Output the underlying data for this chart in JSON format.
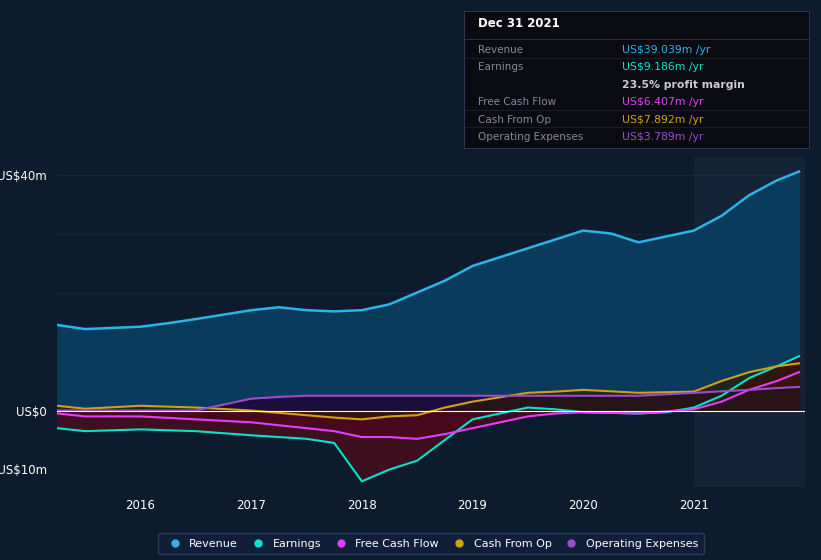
{
  "bg_color": "#0d1b2e",
  "plot_bg_color": "#0d1b2e",
  "highlight_bg": "#142338",
  "grid_color": "#1e3a5a",
  "zero_line_color": "#ffffff",
  "ylabel_top": "US$40m",
  "ylabel_zero": "US$0",
  "ylabel_bottom": "-US$10m",
  "x_labels": [
    "2016",
    "2017",
    "2018",
    "2019",
    "2020",
    "2021"
  ],
  "revenue": {
    "color": "#29b5e8",
    "fill_color": "#0a3a5c",
    "label": "Revenue",
    "data_x": [
      2015.25,
      2015.5,
      2016.0,
      2016.25,
      2016.5,
      2017.0,
      2017.25,
      2017.5,
      2017.75,
      2018.0,
      2018.25,
      2018.5,
      2018.75,
      2019.0,
      2019.5,
      2019.75,
      2020.0,
      2020.25,
      2020.5,
      2020.75,
      2021.0,
      2021.25,
      2021.5,
      2021.75,
      2021.95
    ],
    "data_y": [
      14.5,
      13.8,
      14.2,
      14.8,
      15.5,
      17.0,
      17.5,
      17.0,
      16.8,
      17.0,
      18.0,
      20.0,
      22.0,
      24.5,
      27.5,
      29.0,
      30.5,
      30.0,
      28.5,
      29.5,
      30.5,
      33.0,
      36.5,
      39.0,
      40.5
    ]
  },
  "earnings": {
    "color": "#00e5cc",
    "fill_color": "#3d0f1f",
    "label": "Earnings",
    "data_x": [
      2015.25,
      2015.5,
      2016.0,
      2016.5,
      2017.0,
      2017.5,
      2017.75,
      2018.0,
      2018.25,
      2018.5,
      2018.75,
      2019.0,
      2019.5,
      2019.75,
      2020.0,
      2020.5,
      2020.75,
      2021.0,
      2021.25,
      2021.5,
      2021.75,
      2021.95
    ],
    "data_y": [
      -3.0,
      -3.5,
      -3.2,
      -3.5,
      -4.2,
      -4.8,
      -5.5,
      -12.0,
      -10.0,
      -8.5,
      -5.0,
      -1.5,
      0.5,
      0.2,
      -0.3,
      -0.5,
      -0.3,
      0.5,
      2.5,
      5.5,
      7.5,
      9.2
    ]
  },
  "free_cash_flow": {
    "color": "#e040fb",
    "fill_color": "#4a0820",
    "label": "Free Cash Flow",
    "data_x": [
      2015.25,
      2015.5,
      2016.0,
      2016.5,
      2017.0,
      2017.5,
      2017.75,
      2018.0,
      2018.25,
      2018.5,
      2018.75,
      2019.0,
      2019.5,
      2019.75,
      2020.0,
      2020.5,
      2021.0,
      2021.25,
      2021.5,
      2021.75,
      2021.95
    ],
    "data_y": [
      -0.5,
      -1.0,
      -1.0,
      -1.5,
      -2.0,
      -3.0,
      -3.5,
      -4.5,
      -4.5,
      -4.8,
      -4.0,
      -3.0,
      -1.0,
      -0.5,
      -0.3,
      -0.5,
      0.2,
      1.5,
      3.5,
      5.0,
      6.5
    ]
  },
  "cash_from_op": {
    "color": "#d4a017",
    "fill_color": "#2d1a00",
    "label": "Cash From Op",
    "data_x": [
      2015.25,
      2015.5,
      2016.0,
      2016.5,
      2017.0,
      2017.5,
      2017.75,
      2018.0,
      2018.25,
      2018.5,
      2018.75,
      2019.0,
      2019.5,
      2019.75,
      2020.0,
      2020.5,
      2021.0,
      2021.25,
      2021.5,
      2021.75,
      2021.95
    ],
    "data_y": [
      0.8,
      0.3,
      0.8,
      0.5,
      0.0,
      -0.8,
      -1.2,
      -1.5,
      -1.0,
      -0.8,
      0.5,
      1.5,
      3.0,
      3.2,
      3.5,
      3.0,
      3.2,
      5.0,
      6.5,
      7.5,
      8.0
    ]
  },
  "operating_expenses": {
    "color": "#9c4dcc",
    "fill_color": "#1e0a3a",
    "label": "Operating Expenses",
    "data_x": [
      2015.25,
      2015.5,
      2016.0,
      2016.5,
      2017.0,
      2017.25,
      2017.5,
      2018.0,
      2018.5,
      2019.0,
      2019.5,
      2020.0,
      2020.5,
      2021.0,
      2021.5,
      2021.75,
      2021.95
    ],
    "data_y": [
      0.0,
      0.0,
      0.0,
      0.0,
      2.0,
      2.3,
      2.5,
      2.5,
      2.5,
      2.5,
      2.5,
      2.5,
      2.5,
      3.0,
      3.5,
      3.8,
      4.0
    ]
  },
  "tooltip": {
    "title": "Dec 31 2021",
    "title_color": "#ffffff",
    "bg": "#0a0a12",
    "border": "#333355",
    "label_color": "#888899",
    "rows": [
      {
        "label": "Revenue",
        "value": "US$39.039m /yr",
        "value_color": "#29b5e8"
      },
      {
        "label": "Earnings",
        "value": "US$9.186m /yr",
        "value_color": "#00e5cc"
      },
      {
        "label": "",
        "value": "23.5% profit margin",
        "value_color": "#cccccc",
        "bold": true
      },
      {
        "label": "Free Cash Flow",
        "value": "US$6.407m /yr",
        "value_color": "#e040fb"
      },
      {
        "label": "Cash From Op",
        "value": "US$7.892m /yr",
        "value_color": "#d4a017"
      },
      {
        "label": "Operating Expenses",
        "value": "US$3.789m /yr",
        "value_color": "#9c4dcc"
      }
    ]
  },
  "highlight_x_start": 2021.0,
  "highlight_x_end": 2022.1,
  "ylim": [
    -13,
    43
  ],
  "xlim": [
    2015.25,
    2022.0
  ]
}
